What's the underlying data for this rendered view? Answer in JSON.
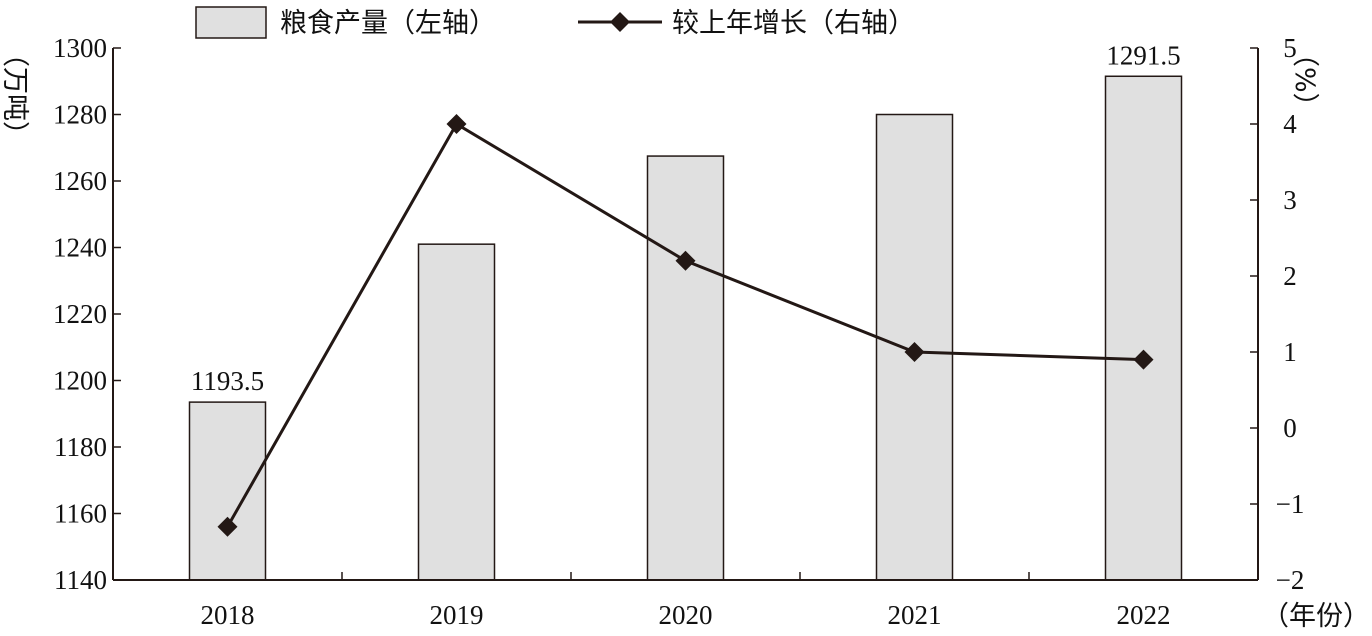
{
  "chart_data": {
    "type": "bar",
    "categories": [
      "2018",
      "2019",
      "2020",
      "2021",
      "2022"
    ],
    "series": [
      {
        "name": "粮食产量（左轴）",
        "kind": "bar",
        "axis": "left",
        "values": [
          1193.5,
          1241,
          1267.5,
          1280,
          1291.5
        ],
        "color": "#e0e0e0"
      },
      {
        "name": "较上年增长（右轴）",
        "kind": "line",
        "axis": "right",
        "values": [
          -1.3,
          4.0,
          2.2,
          1.0,
          0.9
        ],
        "color": "#231815"
      }
    ],
    "data_labels": {
      "0": "1193.5",
      "4": "1291.5"
    },
    "ylabel": "（万吨）",
    "y2label": "（%）",
    "xlabel": "（年份）",
    "ylim": [
      1140,
      1300
    ],
    "yticks": [
      1140,
      1160,
      1180,
      1200,
      1220,
      1240,
      1260,
      1280,
      1300
    ],
    "y2lim": [
      -2,
      5
    ],
    "y2ticks": [
      -2,
      -1,
      0,
      1,
      2,
      3,
      4,
      5
    ],
    "y2tick_labels": [
      "−2",
      "−1",
      "0",
      "1",
      "2",
      "3",
      "4",
      "5"
    ],
    "grid": false,
    "legend_position": "top"
  }
}
